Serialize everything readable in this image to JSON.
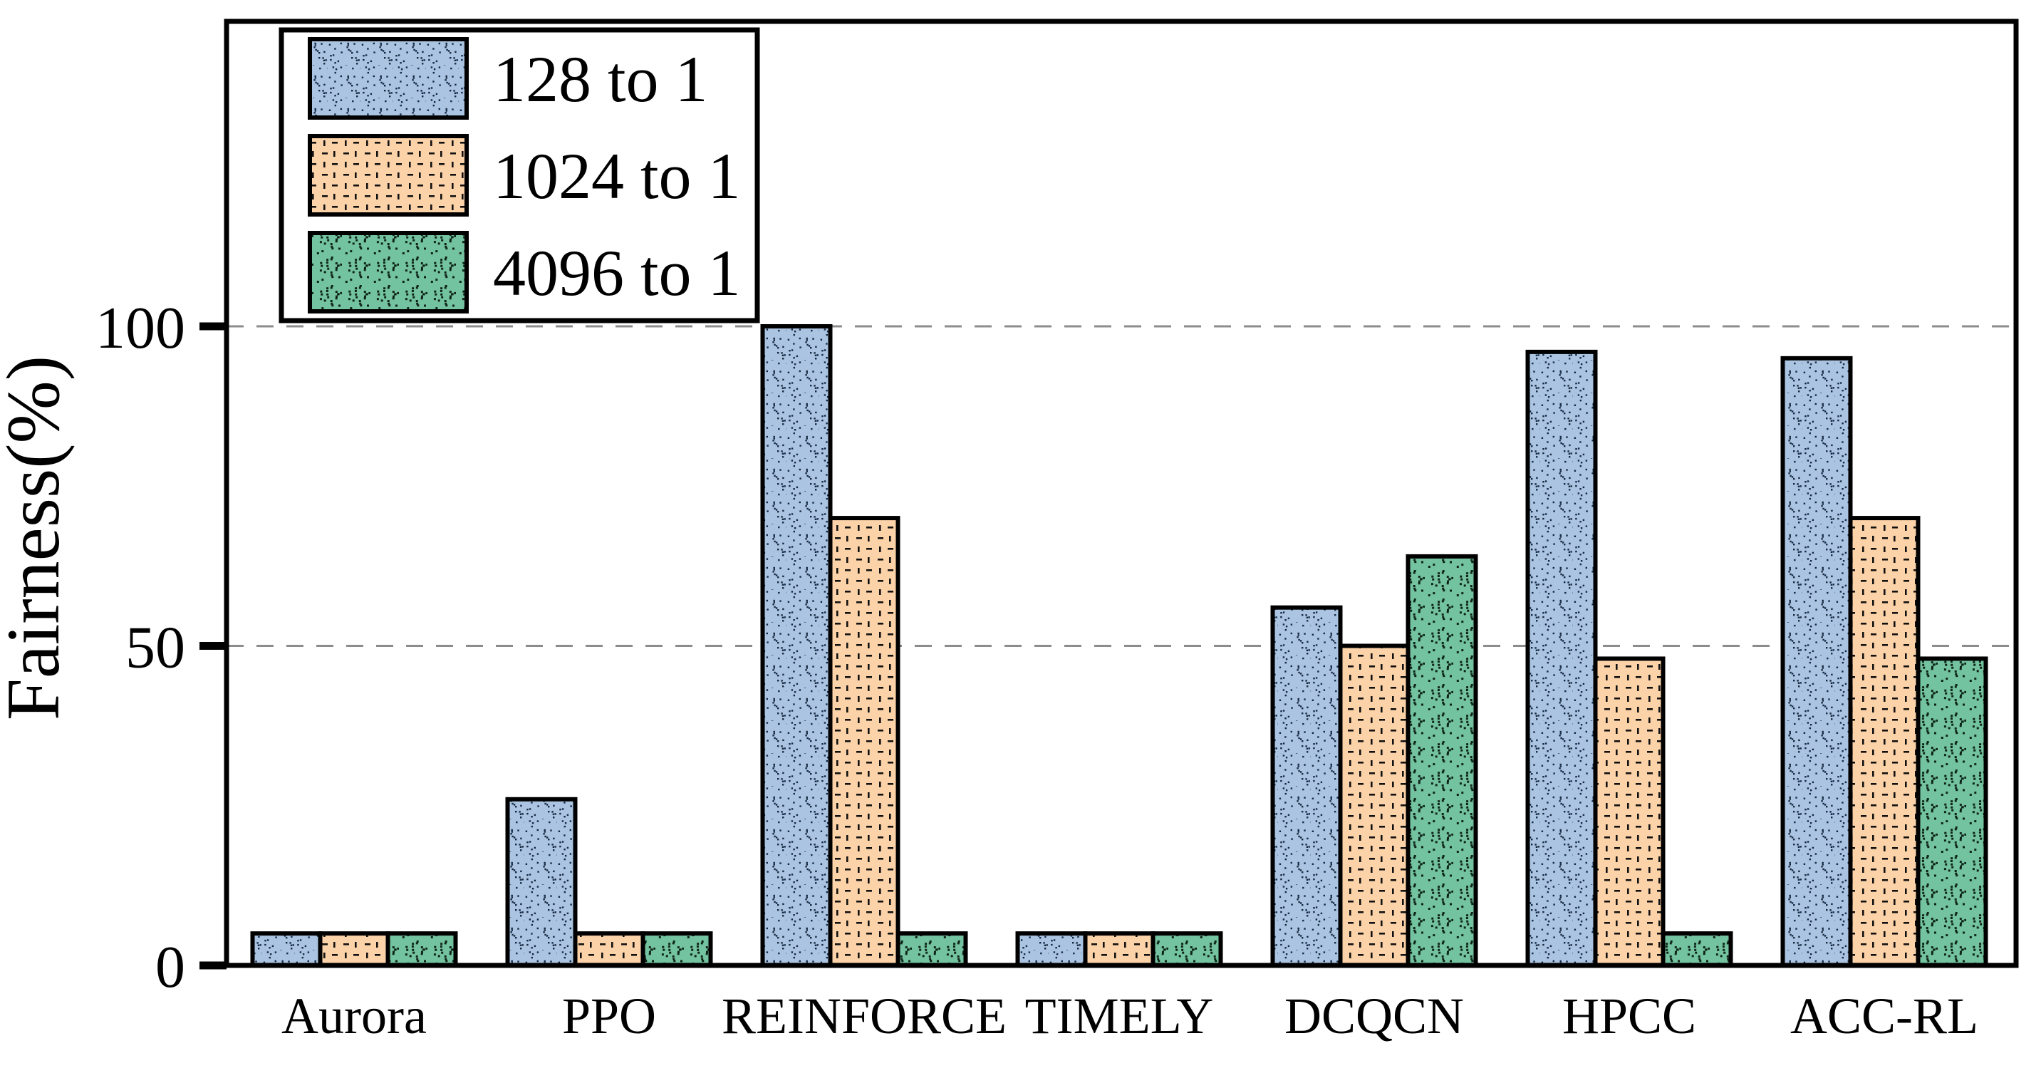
{
  "figure": {
    "background": "#ffffff",
    "frame_color": "#000000"
  },
  "chart_data": {
    "type": "bar",
    "title": "",
    "xlabel": "",
    "ylabel": "Fairness(%)",
    "categories": [
      "Aurora",
      "PPO",
      "REINFORCE",
      "TIMELY",
      "DCQCN",
      "HPCC",
      "ACC-RL"
    ],
    "series": [
      {
        "name": "128 to 1",
        "color": "#aac4e2",
        "dot_color": "#16283f",
        "pattern": "fine-stipple",
        "values": [
          5,
          26,
          100,
          5,
          56,
          96,
          95
        ]
      },
      {
        "name": "1024 to 1",
        "color": "#fcd2a8",
        "dot_color": "#111111",
        "pattern": "dot-grid",
        "values": [
          5,
          5,
          70,
          5,
          50,
          48,
          70
        ]
      },
      {
        "name": "4096 to 1",
        "color": "#74c3a0",
        "dot_color": "#0e2419",
        "pattern": "speckle",
        "values": [
          5,
          5,
          5,
          5,
          64,
          5,
          48
        ]
      }
    ],
    "yticks": [
      {
        "value": 0,
        "label": "0"
      },
      {
        "value": 50,
        "label": "50"
      },
      {
        "value": 100,
        "label": "100"
      }
    ],
    "grid_values": [
      50,
      100
    ],
    "ylim": [
      0,
      148
    ],
    "grid": "dashed horizontal",
    "legend_position": "upper left",
    "bar_border_color": "#000000",
    "axis_color": "#000000",
    "grid_color": "#8c8c8c"
  }
}
